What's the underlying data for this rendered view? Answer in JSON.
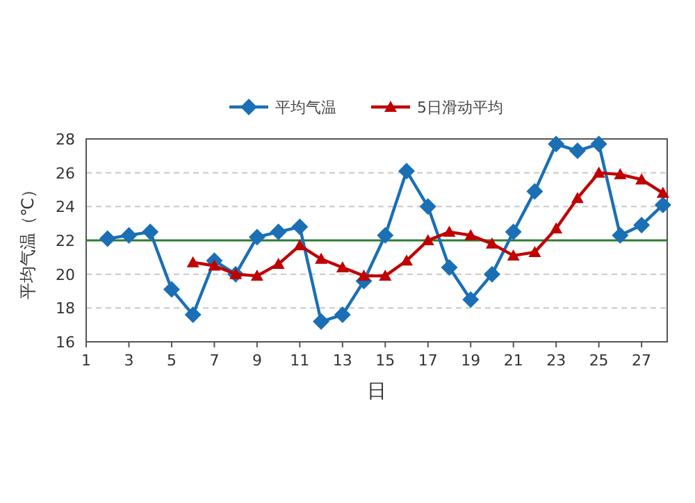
{
  "chart_data": {
    "type": "line",
    "xlabel": "日",
    "ylabel": "平均气温（℃）",
    "x": [
      2,
      3,
      4,
      5,
      6,
      7,
      8,
      9,
      10,
      11,
      12,
      13,
      14,
      15,
      16,
      17,
      18,
      19,
      20,
      21,
      22,
      23,
      24,
      25,
      26,
      27,
      28
    ],
    "series": [
      {
        "name": "平均气温",
        "color": "#1a6fb5",
        "marker": "diamond",
        "values": [
          22.1,
          22.3,
          22.5,
          19.1,
          17.6,
          20.8,
          20.0,
          22.2,
          22.5,
          22.8,
          17.2,
          17.6,
          19.6,
          22.3,
          26.1,
          24.0,
          20.4,
          18.5,
          20.0,
          22.5,
          24.9,
          27.7,
          27.3,
          27.7,
          22.3,
          22.9,
          24.1
        ]
      },
      {
        "name": "5日滑动平均",
        "color": "#c00000",
        "marker": "triangle",
        "values": [
          null,
          null,
          null,
          null,
          20.7,
          20.5,
          20.0,
          19.9,
          20.6,
          21.7,
          20.9,
          20.4,
          19.9,
          19.9,
          20.8,
          22.0,
          22.5,
          22.3,
          21.8,
          21.1,
          21.3,
          22.7,
          24.5,
          26.0,
          25.9,
          25.6,
          24.8
        ]
      }
    ],
    "xlim": [
      1,
      28.2
    ],
    "xticks": [
      1,
      3,
      5,
      7,
      9,
      11,
      13,
      15,
      17,
      19,
      21,
      23,
      25,
      27
    ],
    "ylim": [
      16,
      28
    ],
    "yticks": [
      16,
      18,
      20,
      22,
      24,
      26,
      28
    ],
    "ref_lines": [
      {
        "axis": "y",
        "value": 22,
        "color": "#2e7d32"
      }
    ],
    "grid": "y",
    "legend": "top"
  }
}
